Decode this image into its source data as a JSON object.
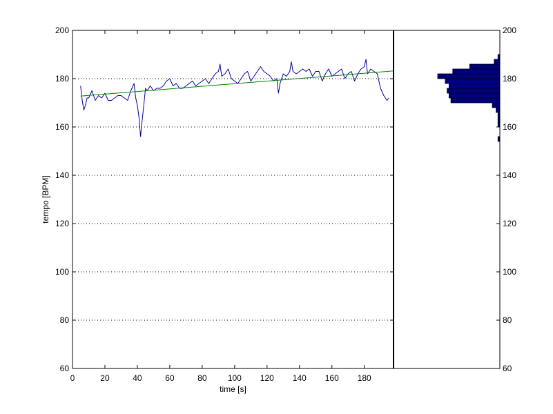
{
  "chart_data": [
    {
      "type": "line",
      "xlabel": "time [s]",
      "ylabel": "tempo [BPM]",
      "xlim": [
        0,
        198
      ],
      "ylim": [
        60,
        200
      ],
      "xticks": [
        0,
        20,
        40,
        60,
        80,
        100,
        120,
        140,
        160,
        180
      ],
      "yticks": [
        60,
        80,
        100,
        120,
        140,
        160,
        180,
        200
      ],
      "grid": "horizontal dotted",
      "series": [
        {
          "color": "#0000a0",
          "x": [
            5,
            6,
            7,
            8,
            9,
            10,
            12,
            14,
            16,
            18,
            20,
            22,
            24,
            26,
            28,
            30,
            32,
            34,
            36,
            38,
            39,
            40,
            41,
            42,
            43,
            44,
            45,
            46,
            48,
            50,
            52,
            54,
            56,
            58,
            60,
            62,
            64,
            66,
            68,
            70,
            72,
            74,
            76,
            78,
            80,
            82,
            84,
            86,
            88,
            90,
            91,
            92,
            94,
            96,
            98,
            100,
            102,
            104,
            106,
            108,
            110,
            112,
            114,
            116,
            118,
            120,
            122,
            124,
            126,
            127,
            128,
            130,
            132,
            134,
            135,
            136,
            138,
            140,
            142,
            144,
            146,
            148,
            150,
            152,
            154,
            156,
            158,
            160,
            162,
            164,
            166,
            168,
            170,
            172,
            174,
            176,
            178,
            180,
            181,
            182,
            184,
            186,
            188,
            190,
            192,
            194,
            195
          ],
          "y": [
            177,
            171,
            167,
            169,
            172,
            172,
            175,
            171,
            173,
            172,
            174,
            171,
            171,
            172,
            173,
            173,
            172,
            171,
            175,
            178,
            172,
            169,
            164,
            156,
            163,
            169,
            176,
            175,
            177,
            175,
            176,
            176,
            177,
            179,
            180,
            177,
            178,
            176,
            176,
            177,
            178,
            179,
            177,
            178,
            179,
            180,
            178,
            180,
            182,
            183,
            186,
            181,
            182,
            184,
            180,
            179,
            178,
            180,
            182,
            183,
            179,
            181,
            183,
            185,
            183,
            182,
            181,
            179,
            180,
            174,
            178,
            182,
            181,
            183,
            187,
            183,
            182,
            183,
            184,
            183,
            184,
            181,
            183,
            183,
            179,
            182,
            184,
            181,
            182,
            183,
            184,
            180,
            182,
            183,
            179,
            182,
            184,
            185,
            188,
            182,
            184,
            183,
            182,
            176,
            173,
            171,
            172
          ]
        },
        {
          "color": "#008000",
          "x": [
            5,
            198
          ],
          "y": [
            172.8,
            183.2
          ]
        }
      ]
    },
    {
      "type": "bar",
      "orientation": "horizontal",
      "ylim": [
        60,
        200
      ],
      "yticks": [
        60,
        80,
        100,
        120,
        140,
        160,
        180,
        200
      ],
      "color": "#00007f",
      "bins": [
        155,
        157,
        159,
        161,
        163,
        165,
        167,
        169,
        171,
        173,
        175,
        177,
        179,
        181,
        183,
        185,
        187,
        189
      ],
      "counts": [
        1,
        0,
        0,
        1,
        1,
        1,
        2,
        4,
        26,
        27,
        28,
        27,
        29,
        33,
        25,
        16,
        3,
        1
      ]
    }
  ]
}
